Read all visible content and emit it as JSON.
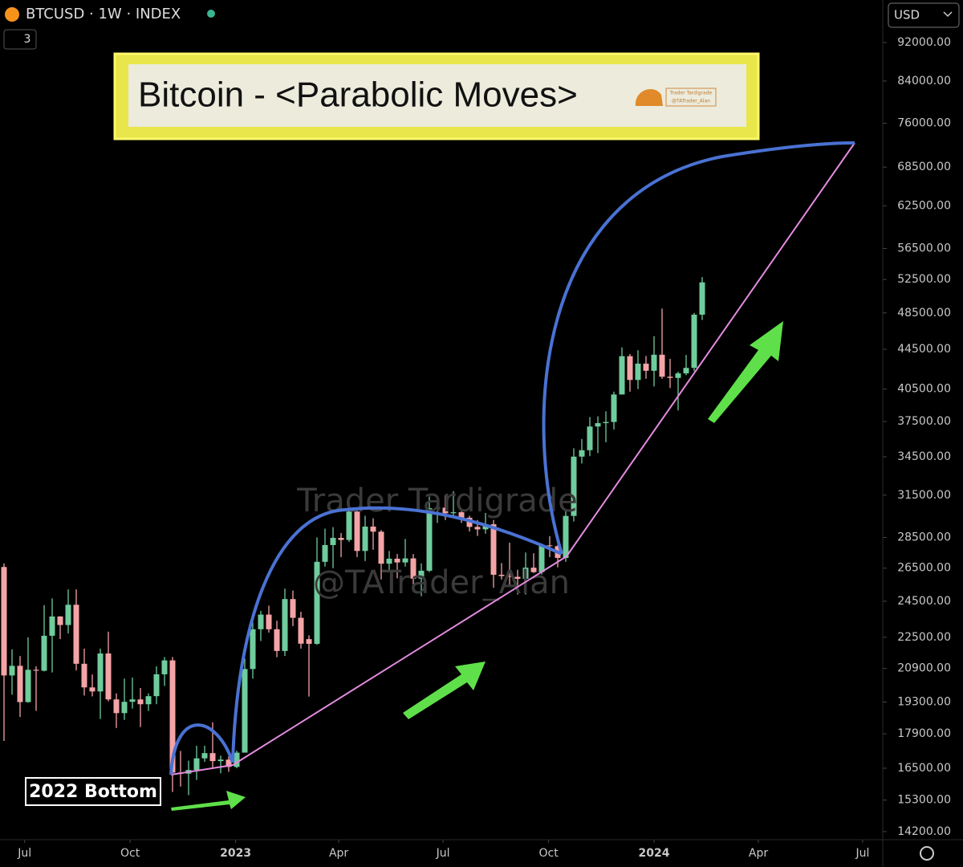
{
  "header": {
    "symbol": "BTCUSD · 1W · INDEX",
    "badge": "3",
    "currency": "USD"
  },
  "chart_data": {
    "type": "candlestick",
    "title": "Bitcoin - <Parabolic Moves>",
    "annotations": [
      "2022 Bottom"
    ],
    "watermark": [
      "Trader Tardigrade",
      "@TATrader_Alan"
    ],
    "up_color": "#6fcc9c",
    "down_color": "#f4a4a6",
    "log_scale": true,
    "grid": false,
    "xlim": [
      -0.5,
      109.5
    ],
    "xticks": [
      {
        "value": 2.57,
        "label": "Jul"
      },
      {
        "value": 15.71,
        "label": "Oct"
      },
      {
        "value": 28.86,
        "label": "2023"
      },
      {
        "value": 41.71,
        "label": "Apr"
      },
      {
        "value": 54.71,
        "label": "Jul"
      },
      {
        "value": 67.86,
        "label": "Oct"
      },
      {
        "value": 81,
        "label": "2024"
      },
      {
        "value": 94,
        "label": "Apr"
      },
      {
        "value": 107,
        "label": "Jul"
      }
    ],
    "ylim": [
      13930,
      101760
    ],
    "yticks": [
      {
        "value": 92000,
        "label": "92000.00"
      },
      {
        "value": 84000,
        "label": "84000.00"
      },
      {
        "value": 76000,
        "label": "76000.00"
      },
      {
        "value": 68500,
        "label": "68500.00"
      },
      {
        "value": 62500,
        "label": "62500.00"
      },
      {
        "value": 56500,
        "label": "56500.00"
      },
      {
        "value": 52500,
        "label": "52500.00"
      },
      {
        "value": 48500,
        "label": "48500.00"
      },
      {
        "value": 44500,
        "label": "44500.00"
      },
      {
        "value": 40500,
        "label": "40500.00"
      },
      {
        "value": 37500,
        "label": "37500.00"
      },
      {
        "value": 34500,
        "label": "34500.00"
      },
      {
        "value": 31500,
        "label": "31500.00"
      },
      {
        "value": 28500,
        "label": "28500.00"
      },
      {
        "value": 26500,
        "label": "26500.00"
      },
      {
        "value": 24500,
        "label": "24500.00"
      },
      {
        "value": 22500,
        "label": "22500.00"
      },
      {
        "value": 20900,
        "label": "20900.00"
      },
      {
        "value": 19300,
        "label": "19300.00"
      },
      {
        "value": 17900,
        "label": "17900.00"
      },
      {
        "value": 16500,
        "label": "16500.00"
      },
      {
        "value": 15300,
        "label": "15300.00"
      },
      {
        "value": 14200,
        "label": "14200.00"
      }
    ],
    "open": [
      26574,
      20553,
      21028,
      19297,
      20832,
      20785,
      22580,
      23634,
      23160,
      24300,
      21130,
      19980,
      19790,
      21650,
      19420,
      18800,
      19310,
      19420,
      19200,
      19570,
      20610,
      21300,
      16330,
      16290,
      16430,
      16890,
      17100,
      16780,
      16840,
      16550,
      17120,
      20870,
      22930,
      23740,
      22930,
      21780,
      24630,
      23560,
      22400,
      22150,
      26900,
      27990,
      28470,
      28330,
      30300,
      27600,
      29240,
      28890,
      26780,
      27100,
      26860,
      27120,
      25850,
      26340,
      30540,
      30580,
      30180,
      30250,
      29860,
      29220,
      29050,
      29400,
      26090,
      26010,
      25960,
      25840,
      26530,
      26250,
      27970,
      27920,
      27150,
      29990,
      34510,
      35040,
      37060,
      37360,
      37460,
      39980,
      43780,
      41380,
      43010,
      42290,
      43930,
      41700,
      41580,
      42030,
      42580,
      48300
    ],
    "high": [
      26800,
      21868,
      21520,
      22500,
      21000,
      24280,
      24670,
      23650,
      25200,
      25200,
      21900,
      20600,
      21900,
      22800,
      19700,
      20400,
      20450,
      19950,
      19700,
      21000,
      21470,
      21470,
      17190,
      16800,
      17400,
      17400,
      18400,
      17000,
      16970,
      17200,
      21400,
      23300,
      23950,
      24250,
      23400,
      25250,
      25130,
      23900,
      22600,
      28500,
      29100,
      29200,
      28800,
      30950,
      30500,
      30000,
      29820,
      29000,
      27600,
      27400,
      28400,
      27400,
      26800,
      31400,
      31280,
      31500,
      31800,
      30400,
      30000,
      29700,
      30200,
      29700,
      26820,
      28150,
      26400,
      27500,
      27450,
      28100,
      28580,
      28000,
      30400,
      35200,
      35980,
      37900,
      37970,
      38420,
      40250,
      44700,
      44000,
      44400,
      43800,
      45900,
      49000,
      43500,
      42200,
      43900,
      48500,
      52800
    ],
    "low": [
      17600,
      19637,
      18626,
      19270,
      18900,
      20750,
      20700,
      22400,
      22700,
      20800,
      19600,
      19560,
      18540,
      19330,
      18150,
      18500,
      19000,
      18190,
      18900,
      19200,
      20050,
      15600,
      15800,
      15480,
      16050,
      16750,
      16520,
      16300,
      16360,
      16500,
      17120,
      20400,
      22300,
      22750,
      21460,
      21530,
      23100,
      21900,
      19550,
      22100,
      26600,
      26500,
      27200,
      28200,
      27200,
      26950,
      27680,
      25800,
      26350,
      25870,
      26600,
      25350,
      24800,
      26250,
      29500,
      29700,
      29950,
      29500,
      28900,
      28600,
      28750,
      25300,
      25800,
      25350,
      24900,
      24900,
      26200,
      26100,
      27200,
      26550,
      26900,
      29600,
      33950,
      34550,
      34800,
      35700,
      36800,
      39980,
      40250,
      40500,
      41500,
      40750,
      41500,
      40600,
      38500,
      41850,
      42250,
      47700
    ],
    "close": [
      20553,
      21028,
      19297,
      20832,
      20785,
      22580,
      23634,
      23160,
      24300,
      21130,
      19980,
      19790,
      21650,
      19420,
      18800,
      19310,
      19420,
      19200,
      19570,
      20610,
      21300,
      16330,
      16290,
      16430,
      16890,
      17100,
      16780,
      16840,
      16550,
      17120,
      20870,
      22930,
      23740,
      22930,
      21780,
      24630,
      23560,
      22160,
      22150,
      26900,
      27990,
      28470,
      28330,
      30300,
      27600,
      29240,
      28890,
      26780,
      27100,
      26860,
      27120,
      25850,
      26340,
      30540,
      30580,
      30180,
      30250,
      29860,
      29220,
      29050,
      29400,
      26090,
      26010,
      25960,
      25840,
      26530,
      26250,
      27970,
      27920,
      27150,
      29990,
      34510,
      35040,
      37060,
      37360,
      37460,
      39980,
      43780,
      41380,
      43010,
      42290,
      43930,
      41700,
      41580,
      42030,
      42580,
      48300,
      52140
    ]
  }
}
